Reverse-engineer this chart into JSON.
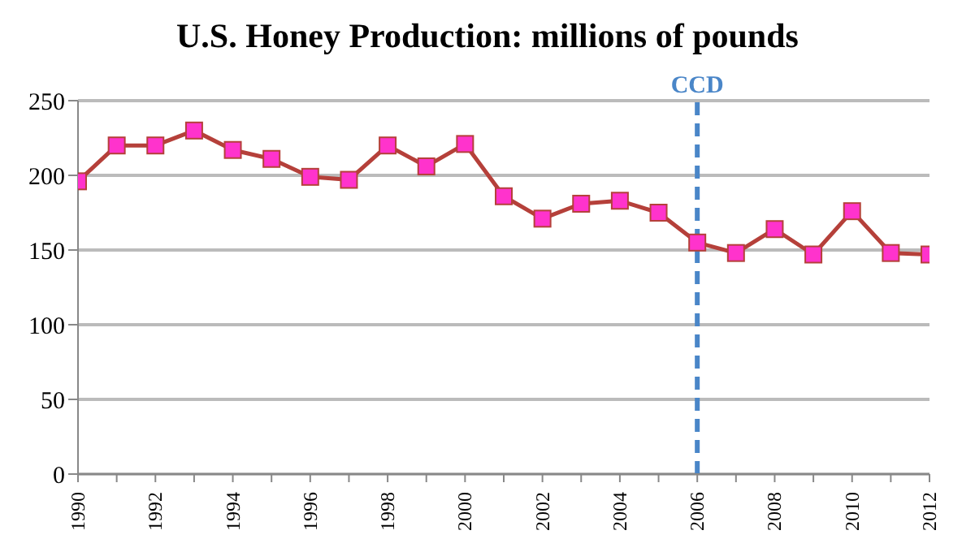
{
  "chart_data": {
    "type": "line",
    "title": "U.S. Honey Production: millions of pounds",
    "x": [
      1990,
      1991,
      1992,
      1993,
      1994,
      1995,
      1996,
      1997,
      1998,
      1999,
      2000,
      2001,
      2002,
      2003,
      2004,
      2005,
      2006,
      2007,
      2008,
      2009,
      2010,
      2011,
      2012
    ],
    "series": [
      {
        "color": "#b5403a",
        "values": [
          196,
          220,
          220,
          230,
          217,
          211,
          199,
          197,
          220,
          206,
          221,
          186,
          171,
          181,
          183,
          175,
          155,
          148,
          164,
          147,
          176,
          148,
          147
        ]
      }
    ],
    "xlim": [
      1990,
      2012
    ],
    "xticks": [
      1990,
      {
        "value": 1991,
        "label": null
      },
      1992,
      {
        "value": 1993,
        "label": null
      },
      1994,
      {
        "value": 1995,
        "label": null
      },
      1996,
      {
        "value": 1997,
        "label": null
      },
      1998,
      {
        "value": 1999,
        "label": null
      },
      2000,
      {
        "value": 2001,
        "label": null
      },
      2002,
      {
        "value": 2003,
        "label": null
      },
      2004,
      {
        "value": 2005,
        "label": null
      },
      2006,
      {
        "value": 2007,
        "label": null
      },
      2008,
      {
        "value": 2009,
        "label": null
      },
      2010,
      {
        "value": 2011,
        "label": null
      },
      2012
    ],
    "ylim": [
      0,
      250
    ],
    "yticks": [
      0,
      50,
      100,
      150,
      200,
      250
    ],
    "grid": "y",
    "marker": "square",
    "line_style": "solid",
    "legend": false,
    "ref_lines": [
      {
        "axis": "x",
        "value": 2006,
        "label": "CCD",
        "color": "#4a86c8",
        "line_style": "dashed"
      }
    ]
  }
}
